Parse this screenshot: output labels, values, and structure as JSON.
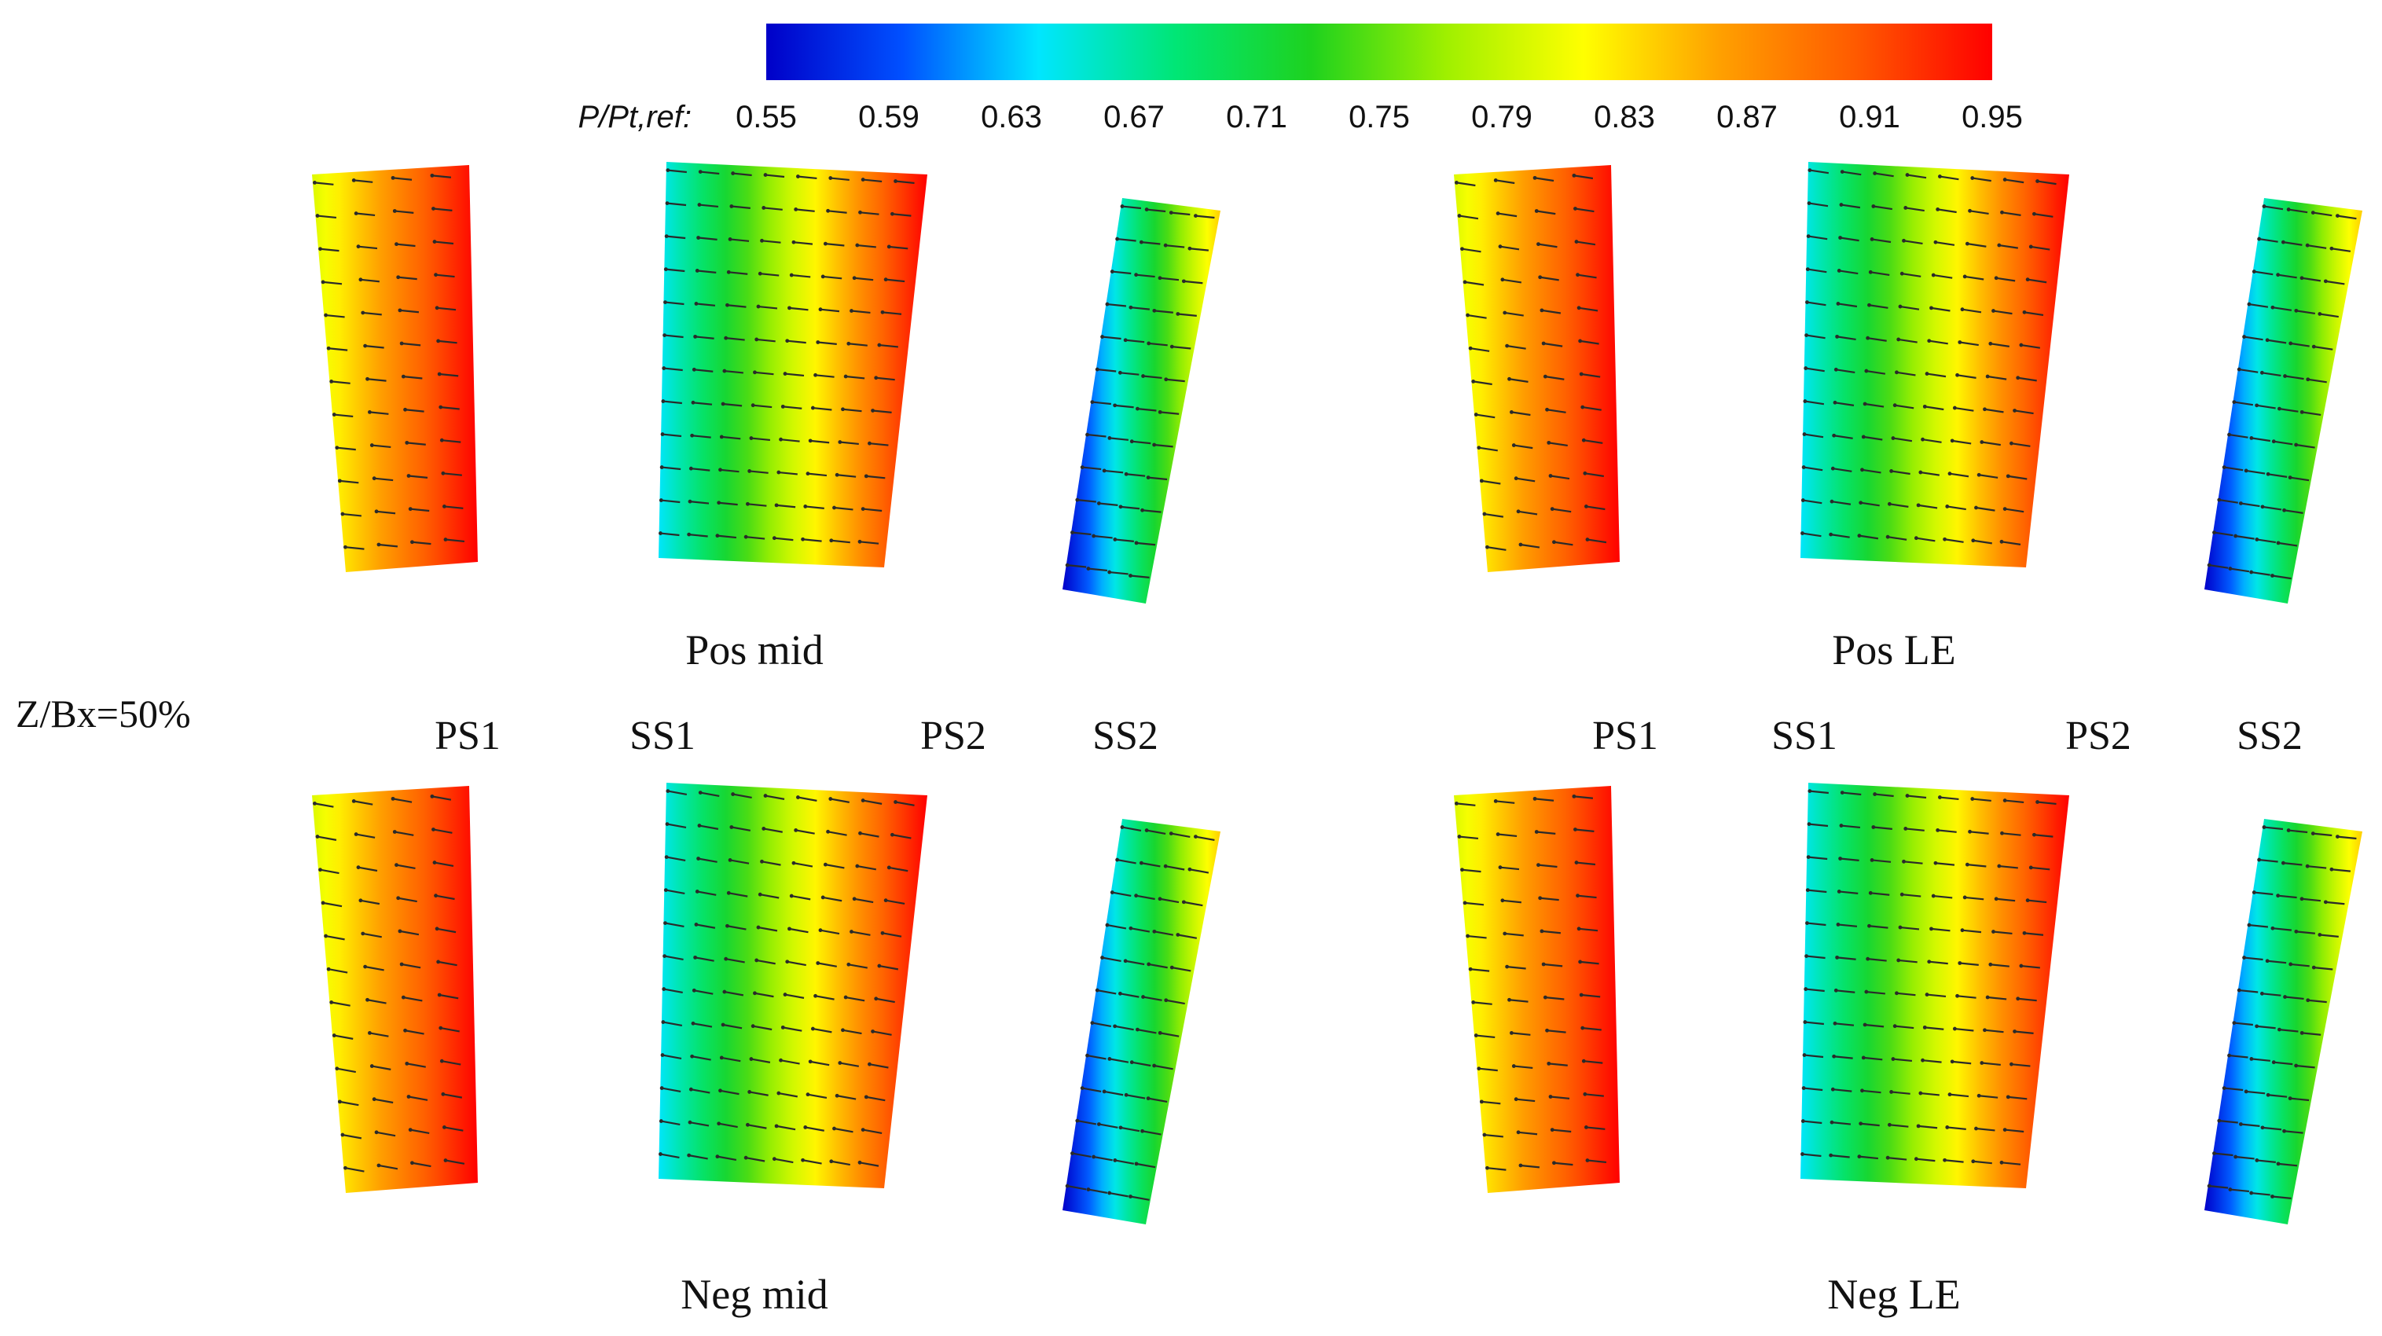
{
  "colorbar": {
    "title": "P/Pt,ref:",
    "ticks": [
      "0.55",
      "0.59",
      "0.63",
      "0.67",
      "0.71",
      "0.75",
      "0.79",
      "0.83",
      "0.87",
      "0.91",
      "0.95"
    ],
    "range": [
      0.55,
      0.95
    ],
    "colormap": [
      "#0000c8",
      "#0050ff",
      "#00e6ff",
      "#00e676",
      "#1ed21e",
      "#a0f000",
      "#ffff00",
      "#ffa000",
      "#ff5a00",
      "#ff0000"
    ]
  },
  "side_label": "Z/Bx=50%",
  "panels": [
    {
      "name": "pos-mid",
      "label": "Pos mid",
      "vector_slope": 0.1
    },
    {
      "name": "pos-le",
      "label": "Pos LE",
      "vector_slope": 0.15
    },
    {
      "name": "neg-mid",
      "label": "Neg mid",
      "vector_slope": 0.18
    },
    {
      "name": "neg-le",
      "label": "Neg LE",
      "vector_slope": 0.1
    }
  ],
  "passage_labels": {
    "left": [
      "PS1",
      "SS1",
      "PS2",
      "SS2"
    ],
    "right": [
      "PS1",
      "SS1",
      "PS2",
      "SS2"
    ]
  },
  "surfaces": [
    {
      "name": "ps1",
      "value_range": [
        0.8,
        0.95
      ]
    },
    {
      "name": "ss1-ps2",
      "value_range": [
        0.64,
        0.95
      ]
    },
    {
      "name": "ss2",
      "value_range": [
        0.55,
        0.84
      ]
    }
  ]
}
